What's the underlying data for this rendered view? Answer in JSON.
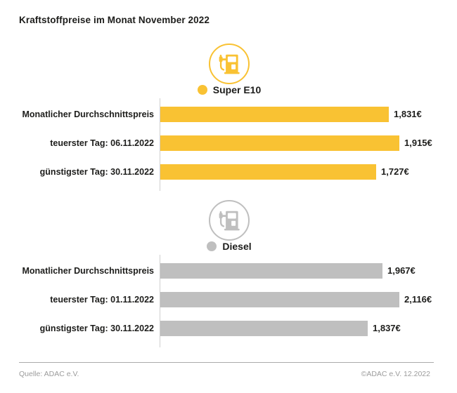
{
  "title": "Kraftstoffpreise im Monat November 2022",
  "footer": {
    "source": "Quelle: ADAC e.V.",
    "copyright": "©ADAC e.V. 12.2022"
  },
  "colors": {
    "super_e10_yellow": "#F9C233",
    "diesel_gray": "#BFBFBF",
    "axis_line": "#CFCFCF",
    "footer_text": "#9B9B9B",
    "text": "#1D1D1B"
  },
  "chart_data": {
    "type": "bar",
    "orientation": "horizontal",
    "unit": "EUR",
    "title": "Kraftstoffpreise im Monat November 2022",
    "legend_position": "above-each-section",
    "grid": false,
    "sections": [
      {
        "fuel": "Super E10",
        "icon": "fuel-pump-icon",
        "color": "#F9C233",
        "categories": [
          "Monatlicher Durchschnittspreis",
          "teuerster Tag: 06.11.2022",
          "günstigster Tag: 30.11.2022"
        ],
        "values": [
          1.831,
          1.915,
          1.727
        ],
        "value_labels": [
          "1,831€",
          "1,915€",
          "1,727€"
        ]
      },
      {
        "fuel": "Diesel",
        "icon": "fuel-pump-icon",
        "color": "#BFBFBF",
        "categories": [
          "Monatlicher Durchschnittspreis",
          "teuerster Tag: 01.11.2022",
          "günstigster Tag: 30.11.2022"
        ],
        "values": [
          1.967,
          2.116,
          1.837
        ],
        "value_labels": [
          "1,967€",
          "2,116€",
          "1,837€"
        ]
      }
    ]
  }
}
